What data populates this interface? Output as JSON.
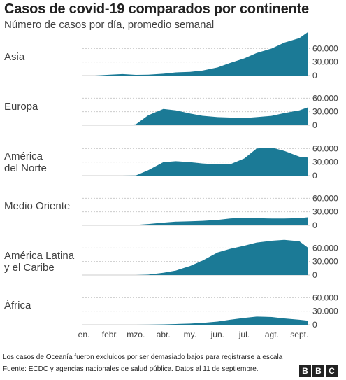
{
  "title": "Casos de covid-19 comparados por continente",
  "subtitle": "Número de casos por día, promedio semanal",
  "colors": {
    "area": "#1b7a96",
    "grid": "#cccccc",
    "text": "#404040"
  },
  "note": "Los casos de Oceanía fueron excluidos por ser demasiado bajos para registrarse a escala",
  "source": "Fuente: ECDC y agencias nacionales de salud pública. Datos al 11 de septiembre.",
  "logo": [
    "B",
    "B",
    "C"
  ],
  "chart_data": {
    "type": "area",
    "x": [
      "2020-01-01",
      "2020-01-15",
      "2020-02-01",
      "2020-02-15",
      "2020-03-01",
      "2020-03-15",
      "2020-04-01",
      "2020-04-15",
      "2020-05-01",
      "2020-05-15",
      "2020-06-01",
      "2020-06-15",
      "2020-07-01",
      "2020-07-15",
      "2020-08-01",
      "2020-08-15",
      "2020-09-01",
      "2020-09-11"
    ],
    "x_ticks": [
      "en.",
      "febr.",
      "mzo.",
      "abr.",
      "my.",
      "jun.",
      "jul.",
      "agt.",
      "sept."
    ],
    "y_ticks": [
      "60.000",
      "30.000",
      "0"
    ],
    "ylim": [
      0,
      90000
    ],
    "grid": true,
    "series": [
      {
        "name": "Asia",
        "values": [
          0,
          0,
          2000,
          3200,
          1500,
          2000,
          4000,
          7000,
          8000,
          11000,
          18000,
          28000,
          38000,
          50000,
          60000,
          73000,
          83000,
          97000
        ]
      },
      {
        "name": "Europa",
        "values": [
          0,
          0,
          0,
          0,
          2000,
          22000,
          36000,
          33000,
          26000,
          21000,
          18000,
          17000,
          16000,
          18000,
          21000,
          27000,
          33000,
          40000
        ]
      },
      {
        "name": "América\ndel Norte",
        "values": [
          0,
          0,
          0,
          0,
          500,
          12000,
          30000,
          32000,
          30000,
          27000,
          25000,
          25000,
          38000,
          60000,
          62000,
          55000,
          42000,
          40000
        ]
      },
      {
        "name": "Medio Oriente",
        "values": [
          0,
          0,
          0,
          0,
          1000,
          3000,
          6000,
          8000,
          9000,
          10000,
          12000,
          15000,
          17000,
          16000,
          15000,
          15000,
          16000,
          18000
        ]
      },
      {
        "name": "América Latina\ny el Caribe",
        "values": [
          0,
          0,
          0,
          0,
          0,
          1000,
          5000,
          10000,
          20000,
          32000,
          50000,
          58000,
          65000,
          72000,
          76000,
          78000,
          75000,
          60000
        ]
      },
      {
        "name": "África",
        "values": [
          0,
          0,
          0,
          0,
          0,
          200,
          800,
          1500,
          2500,
          4000,
          7000,
          11000,
          15000,
          18000,
          17000,
          14000,
          11000,
          9000
        ]
      }
    ]
  }
}
